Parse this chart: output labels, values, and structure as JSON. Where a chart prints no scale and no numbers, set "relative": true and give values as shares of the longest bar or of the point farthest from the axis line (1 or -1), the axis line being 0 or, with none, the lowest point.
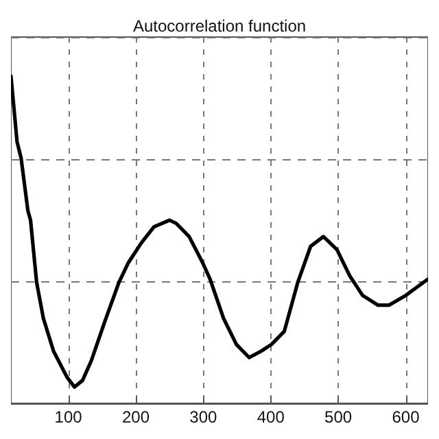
{
  "chart_data": {
    "type": "line",
    "title": "Autocorrelation function",
    "relative": true,
    "x": [
      15,
      24,
      30,
      40,
      44,
      53,
      63,
      78,
      98,
      109,
      121,
      134,
      154,
      175,
      189,
      208,
      227,
      250,
      260,
      279,
      299,
      310,
      330,
      349,
      368,
      386,
      401,
      420,
      440,
      459,
      478,
      498,
      517,
      536,
      559,
      575,
      600,
      633
    ],
    "series": [
      {
        "color": "#000000",
        "values": [
          1,
          0.8,
          0.75,
          0.59,
          0.56,
          0.37,
          0.26,
          0.16,
          0.08,
          0.05,
          0.07,
          0.13,
          0.25,
          0.37,
          0.43,
          0.49,
          0.54,
          0.56,
          0.55,
          0.51,
          0.43,
          0.38,
          0.26,
          0.18,
          0.14,
          0.16,
          0.18,
          0.22,
          0.37,
          0.48,
          0.51,
          0.47,
          0.39,
          0.33,
          0.3,
          0.3,
          0.33,
          0.38
        ]
      }
    ],
    "xlim": [
      15,
      633
    ],
    "xticks": [
      100,
      200,
      300,
      400,
      500,
      600
    ],
    "grid": true,
    "marker": "none",
    "line_style": "solid"
  }
}
